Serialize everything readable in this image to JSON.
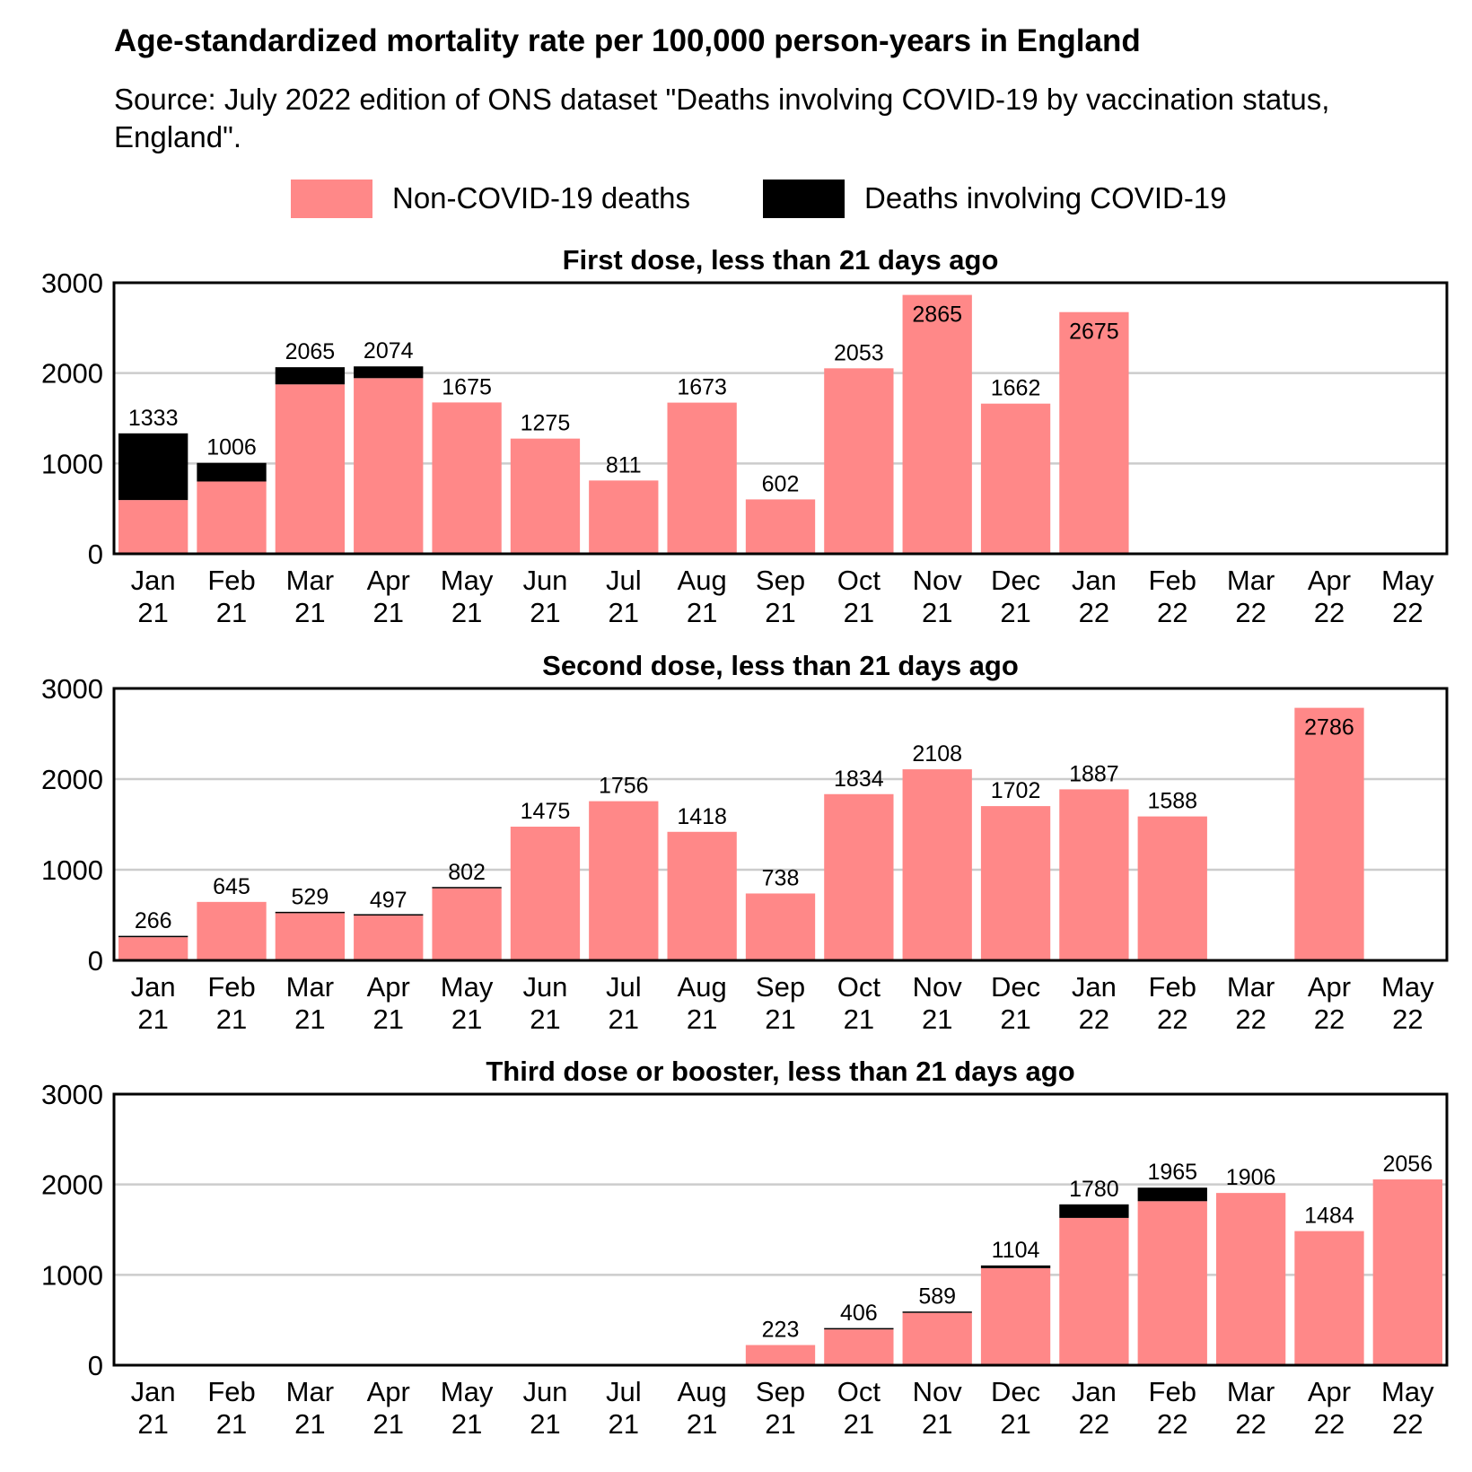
{
  "title": "Age-standardized mortality rate per 100,000 person-years in England",
  "subtitle": "Source: July 2022 edition of ONS dataset \"Deaths involving COVID-19 by vaccination status, England\".",
  "legend": [
    {
      "label": "Non-COVID-19 deaths",
      "color": "#ff8888"
    },
    {
      "label": "Deaths involving COVID-19",
      "color": "#000000"
    }
  ],
  "chart_data": [
    {
      "type": "bar",
      "stacked": true,
      "title": "First dose, less than 21 days ago",
      "categories": [
        "Jan 21",
        "Feb 21",
        "Mar 21",
        "Apr 21",
        "May 21",
        "Jun 21",
        "Jul 21",
        "Aug 21",
        "Sep 21",
        "Oct 21",
        "Nov 21",
        "Dec 21",
        "Jan 22",
        "Feb 22",
        "Mar 22",
        "Apr 22",
        "May 22"
      ],
      "ylim": [
        0,
        3000
      ],
      "yticks": [
        0,
        1000,
        2000,
        3000
      ],
      "grid": true,
      "series": [
        {
          "name": "Non-COVID-19 deaths",
          "color": "#ff8888",
          "values": [
            595,
            800,
            1875,
            1944,
            1675,
            1275,
            811,
            1673,
            602,
            2053,
            2865,
            1662,
            2675,
            null,
            null,
            null,
            null
          ]
        },
        {
          "name": "Deaths involving COVID-19",
          "color": "#000000",
          "values": [
            738,
            206,
            190,
            130,
            0,
            0,
            0,
            0,
            0,
            0,
            0,
            0,
            0,
            null,
            null,
            null,
            null
          ]
        }
      ],
      "totals": [
        1333,
        1006,
        2065,
        2074,
        1675,
        1275,
        811,
        1673,
        602,
        2053,
        2865,
        1662,
        2675,
        null,
        null,
        null,
        null
      ]
    },
    {
      "type": "bar",
      "stacked": true,
      "title": "Second dose, less than 21 days ago",
      "categories": [
        "Jan 21",
        "Feb 21",
        "Mar 21",
        "Apr 21",
        "May 21",
        "Jun 21",
        "Jul 21",
        "Aug 21",
        "Sep 21",
        "Oct 21",
        "Nov 21",
        "Dec 21",
        "Jan 22",
        "Feb 22",
        "Mar 22",
        "Apr 22",
        "May 22"
      ],
      "ylim": [
        0,
        3000
      ],
      "yticks": [
        0,
        1000,
        2000,
        3000
      ],
      "grid": true,
      "series": [
        {
          "name": "Non-COVID-19 deaths",
          "color": "#ff8888",
          "values": [
            256,
            645,
            521,
            495,
            795,
            1475,
            1756,
            1418,
            738,
            1834,
            2108,
            1702,
            1887,
            1588,
            null,
            2786,
            null
          ]
        },
        {
          "name": "Deaths involving COVID-19",
          "color": "#000000",
          "values": [
            10,
            0,
            8,
            2,
            7,
            0,
            0,
            0,
            0,
            0,
            0,
            0,
            0,
            0,
            null,
            0,
            null
          ]
        }
      ],
      "totals": [
        266,
        645,
        529,
        497,
        802,
        1475,
        1756,
        1418,
        738,
        1834,
        2108,
        1702,
        1887,
        1588,
        null,
        2786,
        null
      ]
    },
    {
      "type": "bar",
      "stacked": true,
      "title": "Third dose or booster, less than 21 days ago",
      "categories": [
        "Jan 21",
        "Feb 21",
        "Mar 21",
        "Apr 21",
        "May 21",
        "Jun 21",
        "Jul 21",
        "Aug 21",
        "Sep 21",
        "Oct 21",
        "Nov 21",
        "Dec 21",
        "Jan 22",
        "Feb 22",
        "Mar 22",
        "Apr 22",
        "May 22"
      ],
      "ylim": [
        0,
        3000
      ],
      "yticks": [
        0,
        1000,
        2000,
        3000
      ],
      "grid": true,
      "series": [
        {
          "name": "Non-COVID-19 deaths",
          "color": "#ff8888",
          "values": [
            null,
            null,
            null,
            null,
            null,
            null,
            null,
            null,
            223,
            396,
            579,
            1074,
            1630,
            1815,
            1906,
            1484,
            2056
          ]
        },
        {
          "name": "Deaths involving COVID-19",
          "color": "#000000",
          "values": [
            null,
            null,
            null,
            null,
            null,
            null,
            null,
            null,
            0,
            10,
            10,
            30,
            150,
            150,
            0,
            0,
            0
          ]
        }
      ],
      "totals": [
        null,
        null,
        null,
        null,
        null,
        null,
        null,
        null,
        223,
        406,
        589,
        1104,
        1780,
        1965,
        1906,
        1484,
        2056
      ]
    }
  ]
}
